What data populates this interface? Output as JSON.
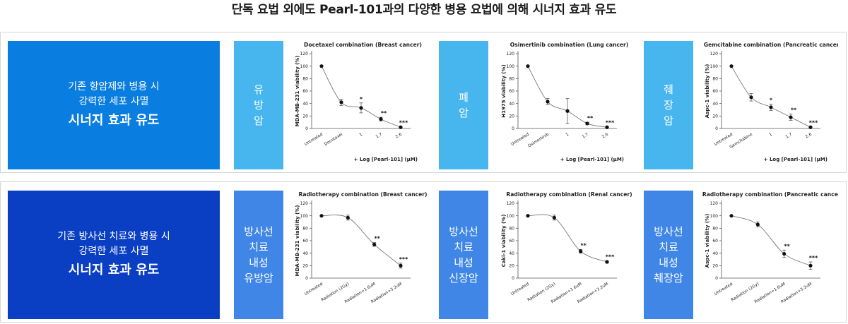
{
  "page": {
    "title": "단독 요법 외에도 Pearl-101과의 다양한 병용 요법에 의해 시너지 효과 유도"
  },
  "rows": [
    {
      "summary": {
        "line1": "기존 항암제와 병용 시",
        "line2": "강력한 세포 사멸",
        "strong": "시너지 효과 유도"
      },
      "labels": [
        "유\n방\n암",
        "폐\n암",
        "췌\n장\n암"
      ]
    },
    {
      "summary": {
        "line1": "기존 방사선 치료와 병용 시",
        "line2": "강력한 세포 사멸",
        "strong": "시너지 효과 유도"
      },
      "labels": [
        "방사선\n치료\n내성\n유방암",
        "방사선\n치료\n내성\n신장암",
        "방사선\n치료\n내성\n췌장암"
      ]
    }
  ],
  "chart_data": [
    {
      "type": "line",
      "title": "Docetaxel combination (Breast cancer)",
      "ylabel": "MDA-MB-231 viability (%)",
      "xlabel": "+ Log [Pearl-101] (µM)",
      "categories": [
        "Untreated",
        "Docetaxel",
        "1",
        "1.7",
        "2.6"
      ],
      "values": [
        100,
        42,
        33,
        15,
        2
      ],
      "errors": [
        0,
        5,
        8,
        3,
        1
      ],
      "significance": [
        "",
        "",
        "*",
        "**",
        "***"
      ],
      "ylim": [
        0,
        120
      ],
      "yticks": [
        0,
        20,
        40,
        60,
        80,
        100,
        120
      ]
    },
    {
      "type": "line",
      "title": "Osimertinib combination (Lung cancer)",
      "ylabel": "H1975 viability (%)",
      "xlabel": "+ Log [Pearl-101] (µM)",
      "categories": [
        "Untreated",
        "Osimertinib",
        "1",
        "1.7",
        "2.6"
      ],
      "values": [
        100,
        43,
        28,
        8,
        2
      ],
      "errors": [
        0,
        5,
        20,
        2,
        1
      ],
      "significance": [
        "",
        "",
        "",
        "**",
        "***"
      ],
      "ylim": [
        0,
        120
      ],
      "yticks": [
        0,
        20,
        40,
        60,
        80,
        100,
        120
      ]
    },
    {
      "type": "line",
      "title": "Gemcitabine combination (Pancreatic cancer)",
      "ylabel": "Aspc-1 viability (%)",
      "xlabel": "+ Log [Pearl-101] (µM)",
      "categories": [
        "Untreated",
        "Gemcitabine",
        "1",
        "1.7",
        "2.6"
      ],
      "values": [
        100,
        50,
        34,
        18,
        2
      ],
      "errors": [
        0,
        6,
        5,
        5,
        1
      ],
      "significance": [
        "",
        "",
        "*",
        "**",
        "***"
      ],
      "ylim": [
        0,
        120
      ],
      "yticks": [
        0,
        20,
        40,
        60,
        80,
        100,
        120
      ]
    },
    {
      "type": "line",
      "title": "Radiotherapy combination (Breast cancer)",
      "ylabel": "MDA-MB-231 viability (%)",
      "xlabel": "",
      "categories": [
        "Untreated",
        "Radiation (2Gy)",
        "Radiation+1.6uM",
        "Radiation+3.2uM"
      ],
      "values": [
        100,
        97,
        54,
        20
      ],
      "errors": [
        0,
        4,
        3,
        4
      ],
      "significance": [
        "",
        "",
        "**",
        "***"
      ],
      "ylim": [
        0,
        120
      ],
      "yticks": [
        0,
        20,
        40,
        60,
        80,
        100,
        120
      ]
    },
    {
      "type": "line",
      "title": "Radiotherapy combination (Renal cancer)",
      "ylabel": "Caki-1 viability (%)",
      "xlabel": "",
      "categories": [
        "Untreated",
        "Radiation (2Gy)",
        "Radiation+1.6uM",
        "Radiation+3.2uM"
      ],
      "values": [
        100,
        97,
        43,
        26
      ],
      "errors": [
        0,
        4,
        3,
        2
      ],
      "significance": [
        "",
        "",
        "**",
        "***"
      ],
      "ylim": [
        0,
        120
      ],
      "yticks": [
        0,
        20,
        40,
        60,
        80,
        100,
        120
      ]
    },
    {
      "type": "line",
      "title": "Radiotherapy combination (Pancreatic cancer)",
      "ylabel": "Aspc-1 viability (%)",
      "xlabel": "",
      "categories": [
        "Untreated",
        "Radiation (2Gy)",
        "Radiation+1.6uM",
        "Radiation+3.2uM"
      ],
      "values": [
        100,
        86,
        39,
        20
      ],
      "errors": [
        0,
        4,
        6,
        6
      ],
      "significance": [
        "",
        "",
        "**",
        "***"
      ],
      "ylim": [
        0,
        120
      ],
      "yticks": [
        0,
        20,
        40,
        60,
        80,
        100,
        120
      ]
    }
  ]
}
